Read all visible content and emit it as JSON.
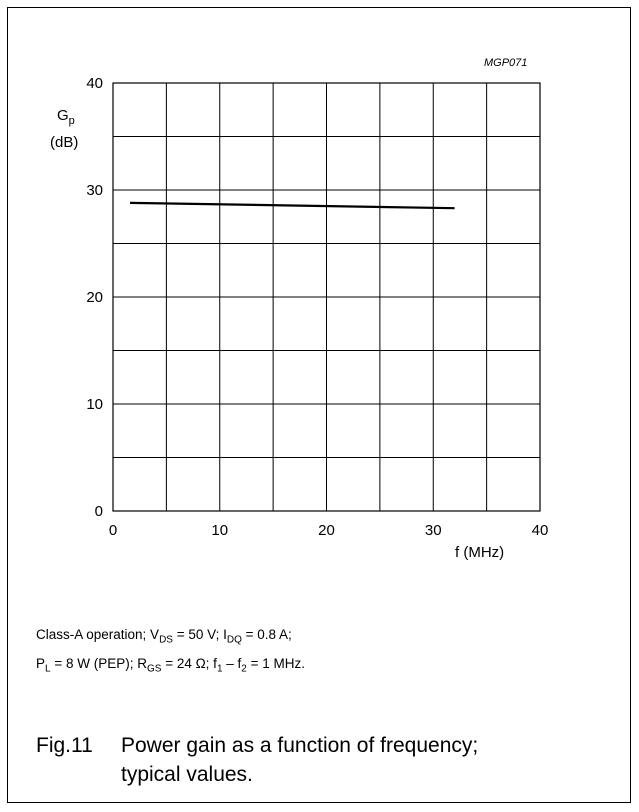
{
  "chart_data": {
    "type": "line",
    "figure_ref": "MGP071",
    "ylabel": {
      "main": "G",
      "sub": "p",
      "unit": "(dB)"
    },
    "xlabel": "f (MHz)",
    "xlim": [
      0,
      40
    ],
    "ylim": [
      0,
      40
    ],
    "x_ticks": [
      "0",
      "10",
      "20",
      "30",
      "40"
    ],
    "y_ticks": [
      "0",
      "10",
      "20",
      "30",
      "40"
    ],
    "grid": true,
    "x_grid_step": 5,
    "y_grid_step": 5,
    "series": [
      {
        "x": [
          1.6,
          32
        ],
        "y": [
          28.8,
          28.3
        ]
      }
    ]
  },
  "conditions": {
    "line1": [
      "Class-A operation; V",
      "DS",
      " = 50 V;  I",
      "DQ",
      " = 0.8 A;"
    ],
    "line2": [
      "P",
      "L",
      " = 8 W (PEP); R",
      "GS",
      " = 24 Ω; f",
      "1",
      " – f",
      "2",
      " = 1 MHz."
    ]
  },
  "caption": {
    "number": "Fig.11",
    "text1": "Power gain as a function of frequency;",
    "text2": "typical values."
  }
}
